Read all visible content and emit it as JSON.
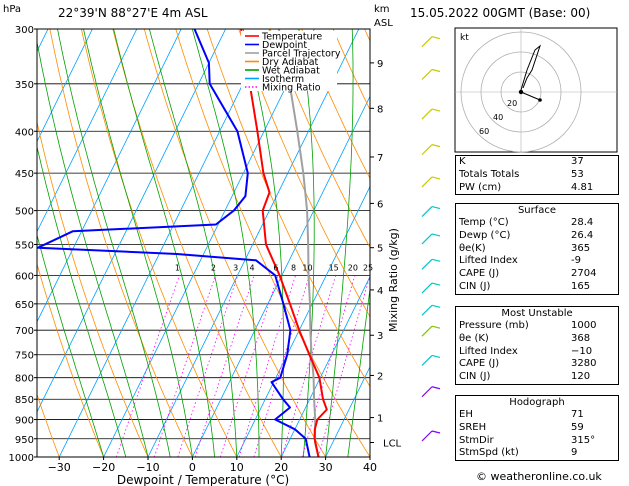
{
  "header": {
    "location": "22°39'N  88°27'E  4m  ASL",
    "datetime": "15.05.2022  00GMT  (Base: 00)",
    "hpa_label": "hPa",
    "km_label": "km",
    "asl_label": "ASL"
  },
  "chart_data": {
    "type": "line",
    "xlabel": "Dewpoint / Temperature (°C)",
    "right_axis_label": "Mixing Ratio (g/kg)",
    "x_ticks": [
      -30,
      -20,
      -10,
      0,
      10,
      20,
      30,
      40
    ],
    "x_tick_labels": [
      "−30",
      "−20",
      "−10",
      "0",
      "10",
      "20",
      "30",
      "40"
    ],
    "pressure_levels": [
      300,
      350,
      400,
      450,
      500,
      550,
      600,
      650,
      700,
      750,
      800,
      850,
      900,
      950,
      1000
    ],
    "km_ticks": [
      {
        "label": "9",
        "p": 330
      },
      {
        "label": "8",
        "p": 375
      },
      {
        "label": "7",
        "p": 430
      },
      {
        "label": "6",
        "p": 490
      },
      {
        "label": "5",
        "p": 555
      },
      {
        "label": "4",
        "p": 625
      },
      {
        "label": "3",
        "p": 710
      },
      {
        "label": "2",
        "p": 795
      },
      {
        "label": "1",
        "p": 895
      },
      {
        "label": "LCL",
        "p": 960
      }
    ],
    "mixing_ratio_labels": [
      "1",
      "2",
      "3",
      "4",
      "6",
      "8",
      "10",
      "15",
      "20",
      "25"
    ],
    "mixing_ratio_values": [
      1,
      2,
      3,
      4,
      6,
      8,
      10,
      15,
      20,
      25
    ],
    "legend": [
      "Temperature",
      "Dewpoint",
      "Parcel Trajectory",
      "Dry Adiabat",
      "Wet Adiabat",
      "Isotherm",
      "Mixing Ratio"
    ],
    "colors": {
      "temperature": "#ff0000",
      "dewpoint": "#0000ff",
      "parcel": "#a0a0a0",
      "dry_adiabat": "#ff8c00",
      "wet_adiabat": "#00a000",
      "isotherm": "#00a0ff",
      "mixing_ratio": "#ff00ff"
    },
    "temperature_profile": [
      [
        1000,
        28.4
      ],
      [
        950,
        25.5
      ],
      [
        925,
        24.5
      ],
      [
        900,
        24.0
      ],
      [
        875,
        25.0
      ],
      [
        850,
        23.0
      ],
      [
        800,
        19.8
      ],
      [
        750,
        15.0
      ],
      [
        700,
        10.0
      ],
      [
        650,
        5.0
      ],
      [
        600,
        -0.5
      ],
      [
        550,
        -7.0
      ],
      [
        500,
        -11.5
      ],
      [
        475,
        -12.0
      ],
      [
        450,
        -15.5
      ],
      [
        400,
        -21.5
      ],
      [
        350,
        -28.5
      ],
      [
        300,
        -36.5
      ]
    ],
    "dewpoint_profile": [
      [
        1000,
        26.4
      ],
      [
        950,
        23.5
      ],
      [
        925,
        20.0
      ],
      [
        900,
        14.5
      ],
      [
        870,
        16.5
      ],
      [
        850,
        14.0
      ],
      [
        810,
        9.5
      ],
      [
        800,
        11.0
      ],
      [
        750,
        10.0
      ],
      [
        700,
        8.0
      ],
      [
        650,
        3.5
      ],
      [
        600,
        -1.5
      ],
      [
        575,
        -7.5
      ],
      [
        565,
        -26.0
      ],
      [
        555,
        -58.0
      ],
      [
        530,
        -52.0
      ],
      [
        520,
        -20.5
      ],
      [
        500,
        -18.0
      ],
      [
        480,
        -17.0
      ],
      [
        450,
        -19.0
      ],
      [
        400,
        -26.0
      ],
      [
        350,
        -37.5
      ],
      [
        330,
        -40.0
      ],
      [
        300,
        -47.0
      ]
    ],
    "parcel_profile": [
      [
        1000,
        28.4
      ],
      [
        960,
        26.0
      ],
      [
        900,
        23.5
      ],
      [
        850,
        21.0
      ],
      [
        800,
        18.5
      ],
      [
        750,
        15.5
      ],
      [
        700,
        12.5
      ],
      [
        650,
        9.5
      ],
      [
        600,
        6.0
      ],
      [
        550,
        2.5
      ],
      [
        500,
        -1.5
      ],
      [
        450,
        -6.5
      ],
      [
        400,
        -12.5
      ],
      [
        350,
        -19.5
      ],
      [
        300,
        -28.0
      ]
    ]
  },
  "hodograph": {
    "label": "kt",
    "ring_labels": [
      "20",
      "40",
      "60"
    ]
  },
  "indices": {
    "rows": [
      {
        "label": "K",
        "value": "37"
      },
      {
        "label": "Totals Totals",
        "value": "53"
      },
      {
        "label": "PW (cm)",
        "value": "4.81"
      }
    ]
  },
  "surface": {
    "title": "Surface",
    "rows": [
      {
        "label": "Temp (°C)",
        "value": "28.4"
      },
      {
        "label": "Dewp (°C)",
        "value": "26.4"
      },
      {
        "label": "θe(K)",
        "value": "365"
      },
      {
        "label": "Lifted Index",
        "value": "-9"
      },
      {
        "label": "CAPE (J)",
        "value": "2704"
      },
      {
        "label": "CIN (J)",
        "value": "165"
      }
    ]
  },
  "most_unstable": {
    "title": "Most Unstable",
    "rows": [
      {
        "label": "Pressure (mb)",
        "value": "1000"
      },
      {
        "label": "θe (K)",
        "value": "368"
      },
      {
        "label": "Lifted Index",
        "value": "−10"
      },
      {
        "label": "CAPE (J)",
        "value": "3280"
      },
      {
        "label": "CIN (J)",
        "value": "120"
      }
    ]
  },
  "hodograph_table": {
    "title": "Hodograph",
    "rows": [
      {
        "label": "EH",
        "value": "71"
      },
      {
        "label": "SREH",
        "value": "59"
      },
      {
        "label": "StmDir",
        "value": "315°"
      },
      {
        "label": "StmSpd (kt)",
        "value": "9"
      }
    ]
  },
  "footer": {
    "credit": "© weatheronline.co.uk"
  }
}
